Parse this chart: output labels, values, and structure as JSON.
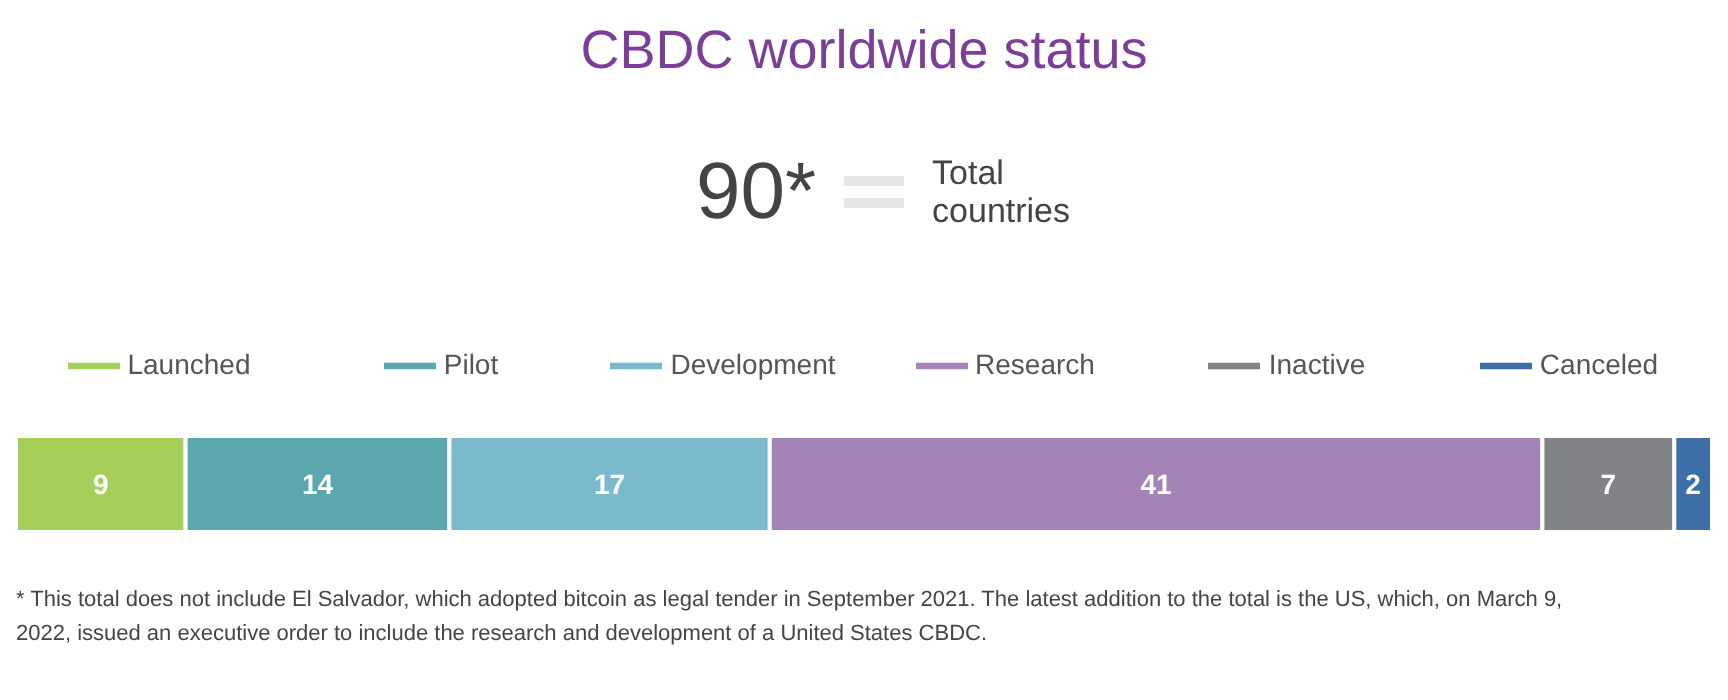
{
  "chart_data": {
    "type": "bar",
    "orientation": "horizontal",
    "stacked": true,
    "title": "CBDC worldwide status",
    "categories": [
      null
    ],
    "series": [
      {
        "name": "Launched",
        "color": "#a6cf5a",
        "values": [
          9
        ]
      },
      {
        "name": "Pilot",
        "color": "#5aa7ad",
        "values": [
          14
        ]
      },
      {
        "name": "Development",
        "color": "#7bbacd",
        "values": [
          17
        ]
      },
      {
        "name": "Research",
        "color": "#a383b8",
        "values": [
          41
        ]
      },
      {
        "name": "Inactive",
        "color": "#808285",
        "values": [
          7
        ]
      },
      {
        "name": "Canceled",
        "color": "#3e6ea8",
        "values": [
          2
        ]
      }
    ],
    "data_labels": true,
    "legend": "top",
    "tick_labels": false,
    "annotations": [
      "90*",
      "Total countries",
      "* This total does not include El Salvador, which adopted bitcoin as legal tender in September 2021. The latest addition to the total is the US, which, on March 9, 2022, issued an executive order to include the research and development of a United States CBDC."
    ]
  }
}
